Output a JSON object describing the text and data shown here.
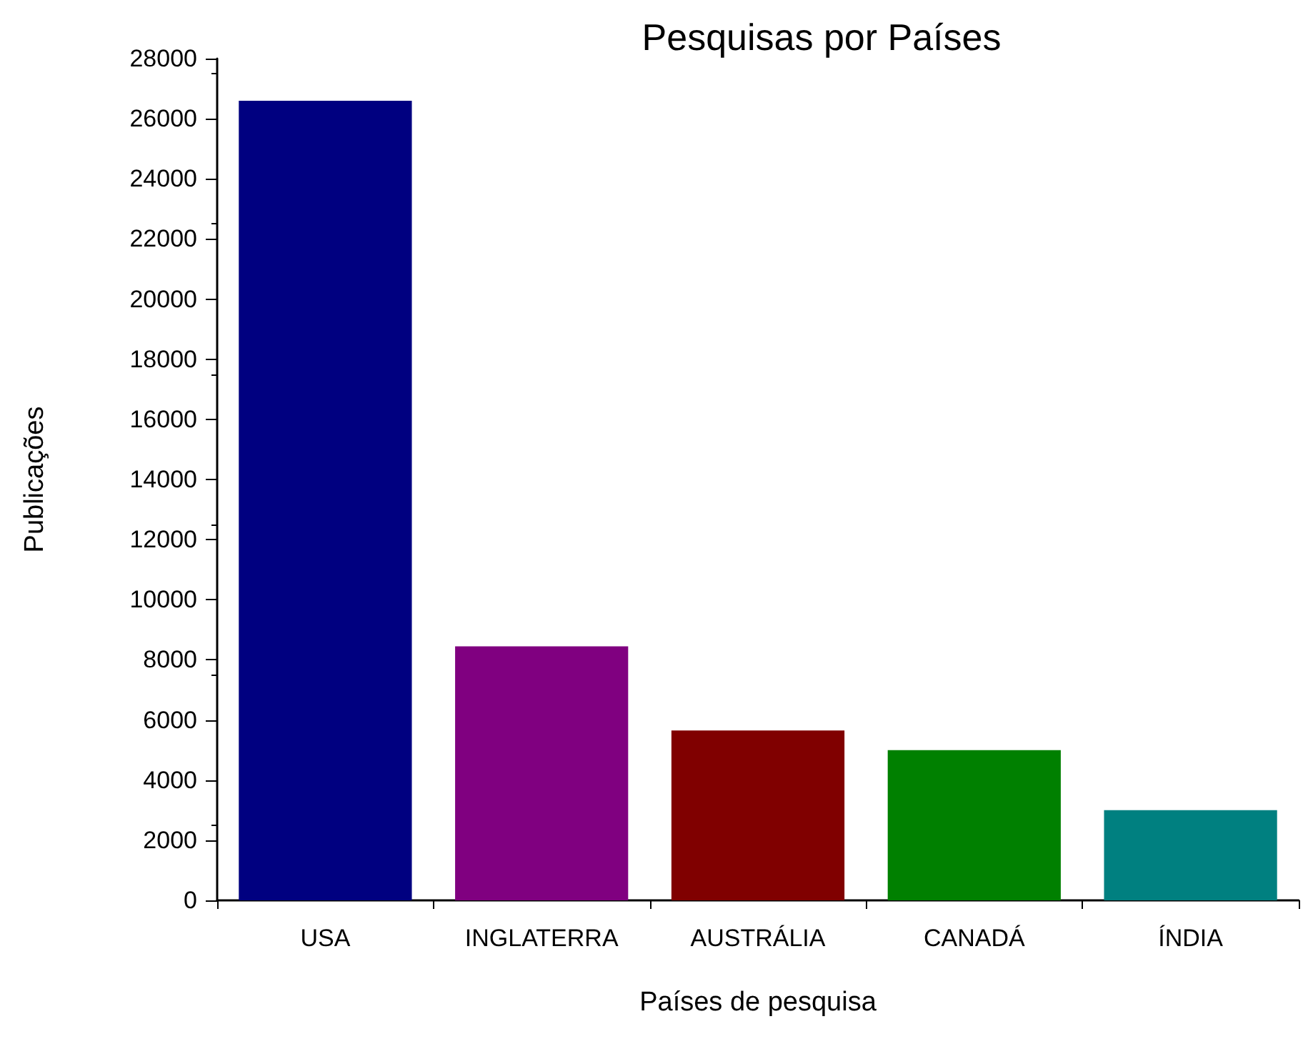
{
  "chart_data": {
    "type": "bar",
    "title": "Pesquisas por Países",
    "xlabel": "Países de pesquisa",
    "ylabel": "Publicações",
    "categories": [
      "USA",
      "INGLATERRA",
      "AUSTRÁLIA",
      "CANADÁ",
      "ÍNDIA"
    ],
    "values": [
      26600,
      8450,
      5650,
      5000,
      3000
    ],
    "colors": [
      "#000080",
      "#800080",
      "#800000",
      "#008000",
      "#008080"
    ],
    "ylim": [
      0,
      28000
    ],
    "yticks": [
      0,
      2000,
      4000,
      6000,
      8000,
      10000,
      12000,
      14000,
      16000,
      18000,
      20000,
      22000,
      24000,
      26000,
      28000
    ],
    "grid": false
  }
}
